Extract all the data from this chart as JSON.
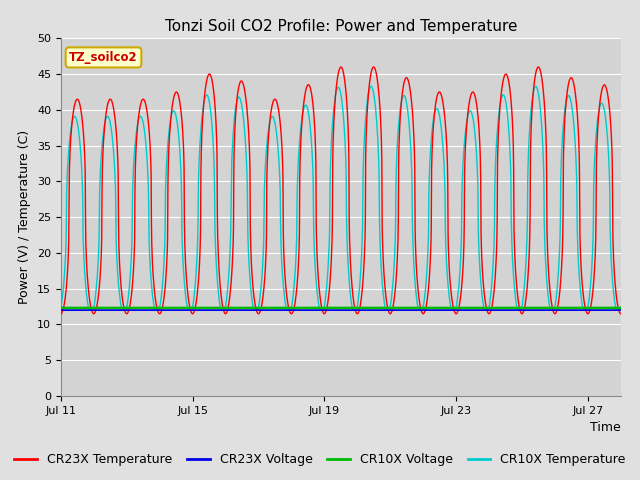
{
  "title": "Tonzi Soil CO2 Profile: Power and Temperature",
  "ylabel": "Power (V) / Temperature (C)",
  "xlabel": "Time",
  "site_label": "TZ_soilco2",
  "ylim": [
    0,
    50
  ],
  "yticks": [
    0,
    5,
    10,
    15,
    20,
    25,
    30,
    35,
    40,
    45,
    50
  ],
  "xtick_labels": [
    "Jul 11",
    "Jul 15",
    "Jul 19",
    "Jul 23",
    "Jul 27"
  ],
  "xtick_positions": [
    0,
    4,
    8,
    12,
    16
  ],
  "cr23x_temp_color": "#FF0000",
  "cr23x_volt_color": "#0000EE",
  "cr10x_volt_color": "#00BB00",
  "cr10x_temp_color": "#00CCCC",
  "cr23x_volt_value": 12.0,
  "cr10x_volt_value": 12.3,
  "background_color": "#E0E0E0",
  "plot_bg_color": "#D3D3D3",
  "grid_color": "#FFFFFF",
  "title_fontsize": 11,
  "label_fontsize": 9,
  "tick_fontsize": 8,
  "legend_fontsize": 9,
  "total_days": 17,
  "points_per_day": 96,
  "base_min": 11.5,
  "cr23x_amp_base": 30,
  "cr10x_amp_base": 28,
  "cr10x_phase_lead": 0.08
}
